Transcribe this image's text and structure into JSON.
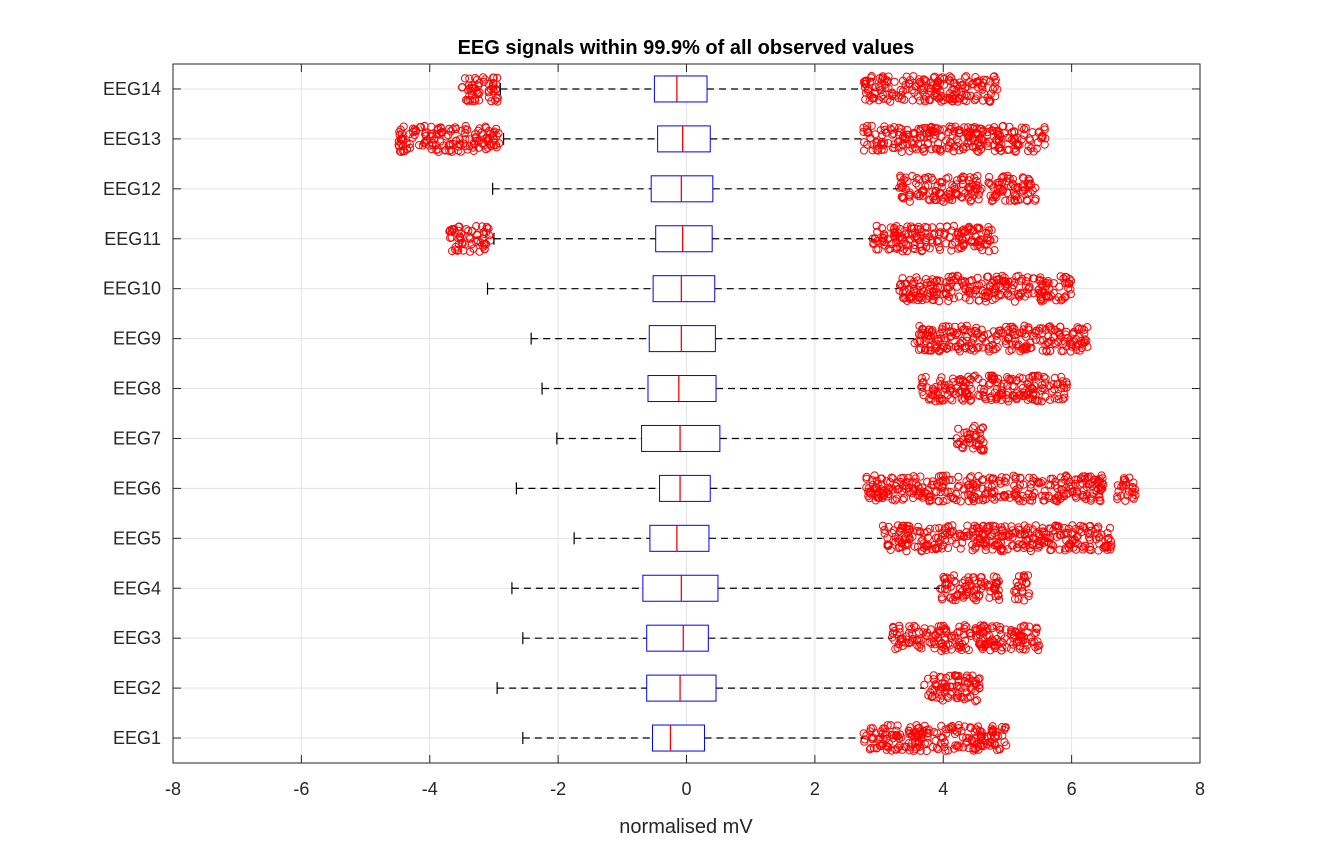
{
  "chart_data": {
    "type": "boxplot",
    "orientation": "horizontal",
    "title": "EEG signals within 99.9% of all observed values",
    "xlabel": "normalised mV",
    "ylabel": "",
    "xlim": [
      -8,
      8
    ],
    "xticks": [
      -8,
      -6,
      -4,
      -2,
      0,
      2,
      4,
      6,
      8
    ],
    "xtick_labels": [
      "-8",
      "-6",
      "-4",
      "-2",
      "0",
      "2",
      "4",
      "6",
      "8"
    ],
    "grid": true,
    "colors": {
      "box": "#0000ff",
      "median": "#ff0000",
      "whisker": "#000000",
      "outlier": "#ff0000",
      "grid": "#e3e3e3",
      "axis": "#262626"
    },
    "series": [
      {
        "name": "EEG1",
        "q1": -0.53,
        "median": -0.25,
        "q3": 0.28,
        "whisker_low": -2.55,
        "whisker_high": 2.75,
        "outliers_low": [],
        "outliers_high": [
          [
            2.75,
            4.0
          ],
          [
            4.0,
            4.75
          ],
          [
            4.75,
            5.0
          ]
        ]
      },
      {
        "name": "EEG2",
        "q1": -0.62,
        "median": -0.1,
        "q3": 0.46,
        "whisker_low": -2.95,
        "whisker_high": 3.7,
        "outliers_low": [],
        "outliers_high": [
          [
            3.7,
            4.6
          ]
        ]
      },
      {
        "name": "EEG3",
        "q1": -0.62,
        "median": -0.05,
        "q3": 0.34,
        "whisker_low": -2.55,
        "whisker_high": 3.2,
        "outliers_low": [],
        "outliers_high": [
          [
            3.2,
            4.75
          ],
          [
            4.75,
            5.5
          ]
        ]
      },
      {
        "name": "EEG4",
        "q1": -0.68,
        "median": -0.08,
        "q3": 0.49,
        "whisker_low": -2.72,
        "whisker_high": 3.95,
        "outliers_low": [],
        "outliers_high": [
          [
            3.95,
            4.9
          ],
          [
            5.1,
            5.35
          ]
        ]
      },
      {
        "name": "EEG5",
        "q1": -0.57,
        "median": -0.15,
        "q3": 0.35,
        "whisker_low": -1.75,
        "whisker_high": 3.05,
        "outliers_low": [],
        "outliers_high": [
          [
            3.05,
            5.3
          ],
          [
            5.3,
            6.65
          ]
        ]
      },
      {
        "name": "EEG6",
        "q1": -0.42,
        "median": -0.1,
        "q3": 0.37,
        "whisker_low": -2.65,
        "whisker_high": 2.8,
        "outliers_low": [],
        "outliers_high": [
          [
            2.8,
            5.0
          ],
          [
            5.0,
            6.5
          ],
          [
            6.7,
            7.0
          ]
        ]
      },
      {
        "name": "EEG7",
        "q1": -0.7,
        "median": -0.1,
        "q3": 0.52,
        "whisker_low": -2.02,
        "whisker_high": 4.2,
        "outliers_low": [],
        "outliers_high": [
          [
            4.2,
            4.65
          ]
        ]
      },
      {
        "name": "EEG8",
        "q1": -0.6,
        "median": -0.12,
        "q3": 0.46,
        "whisker_low": -2.25,
        "whisker_high": 3.65,
        "outliers_low": [],
        "outliers_high": [
          [
            3.65,
            4.8
          ],
          [
            4.8,
            5.95
          ]
        ]
      },
      {
        "name": "EEG9",
        "q1": -0.58,
        "median": -0.08,
        "q3": 0.45,
        "whisker_low": -2.42,
        "whisker_high": 3.55,
        "outliers_low": [],
        "outliers_high": [
          [
            3.55,
            4.9
          ],
          [
            4.9,
            6.25
          ]
        ]
      },
      {
        "name": "EEG10",
        "q1": -0.52,
        "median": -0.08,
        "q3": 0.44,
        "whisker_low": -3.1,
        "whisker_high": 3.3,
        "outliers_low": [],
        "outliers_high": [
          [
            3.3,
            4.8
          ],
          [
            4.8,
            6.0
          ]
        ]
      },
      {
        "name": "EEG11",
        "q1": -0.48,
        "median": -0.06,
        "q3": 0.4,
        "whisker_low": -3.0,
        "whisker_high": 2.9,
        "outliers_low": [
          [
            -3.7,
            -3.05
          ]
        ],
        "outliers_high": [
          [
            2.9,
            4.8
          ]
        ]
      },
      {
        "name": "EEG12",
        "q1": -0.55,
        "median": -0.08,
        "q3": 0.41,
        "whisker_low": -3.02,
        "whisker_high": 3.3,
        "outliers_low": [],
        "outliers_high": [
          [
            3.3,
            4.6
          ],
          [
            4.7,
            5.45
          ]
        ]
      },
      {
        "name": "EEG13",
        "q1": -0.45,
        "median": -0.06,
        "q3": 0.37,
        "whisker_low": -2.85,
        "whisker_high": 2.75,
        "outliers_low": [
          [
            -4.5,
            -2.9
          ]
        ],
        "outliers_high": [
          [
            2.75,
            4.5
          ],
          [
            4.5,
            5.6
          ]
        ]
      },
      {
        "name": "EEG14",
        "q1": -0.5,
        "median": -0.15,
        "q3": 0.32,
        "whisker_low": -2.9,
        "whisker_high": 2.75,
        "outliers_low": [
          [
            -3.5,
            -2.9
          ]
        ],
        "outliers_high": [
          [
            2.75,
            4.0
          ],
          [
            4.0,
            4.85
          ]
        ]
      }
    ]
  }
}
